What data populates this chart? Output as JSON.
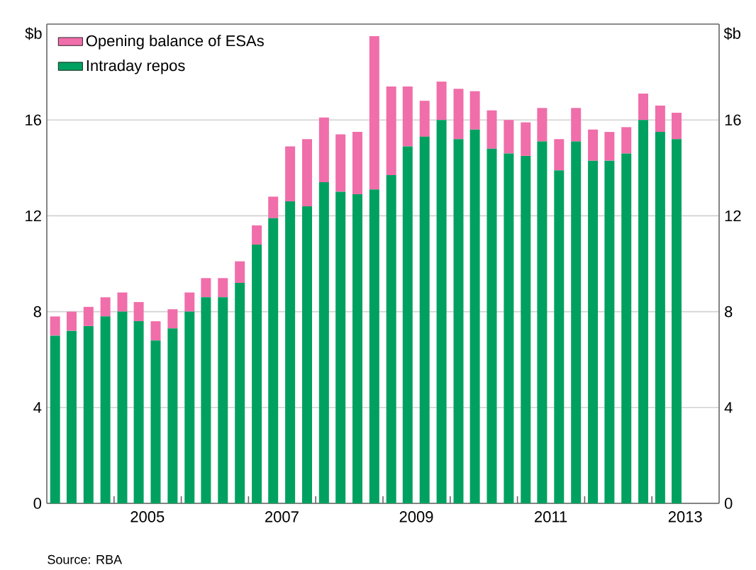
{
  "chart_data": {
    "type": "bar",
    "stacked": true,
    "ylabel": "$b",
    "y2label": "$b",
    "x": [
      "2004-02-15",
      "2004-05-15",
      "2004-08-15",
      "2004-11-15",
      "2005-02-15",
      "2005-05-15",
      "2005-08-15",
      "2005-11-15",
      "2006-02-15",
      "2006-05-15",
      "2006-08-15",
      "2006-11-15",
      "2007-02-15",
      "2007-05-15",
      "2007-08-15",
      "2007-11-15",
      "2008-02-15",
      "2008-05-15",
      "2008-08-15",
      "2008-11-15",
      "2009-02-15",
      "2009-05-15",
      "2009-08-15",
      "2009-11-15",
      "2010-02-15",
      "2010-05-15",
      "2010-08-15",
      "2010-11-15",
      "2011-02-15",
      "2011-05-15",
      "2011-08-15",
      "2011-11-15",
      "2012-02-15",
      "2012-05-15",
      "2012-08-15",
      "2012-11-15",
      "2013-02-15",
      "2013-05-15"
    ],
    "series": [
      {
        "name": "Intraday repos",
        "color": "#00a160",
        "values": [
          7.0,
          7.2,
          7.4,
          7.8,
          8.0,
          7.6,
          6.8,
          7.3,
          8.0,
          8.6,
          8.6,
          9.2,
          10.8,
          11.9,
          12.6,
          12.4,
          13.4,
          13.0,
          12.9,
          13.1,
          13.7,
          14.9,
          15.3,
          16.0,
          15.2,
          15.6,
          14.8,
          14.6,
          14.5,
          15.1,
          13.9,
          15.1,
          14.3,
          14.3,
          14.6,
          16.0,
          15.5,
          15.2
        ]
      },
      {
        "name": "Opening balance of ESAs",
        "color": "#f06eaa",
        "values": [
          0.8,
          0.8,
          0.8,
          0.8,
          0.8,
          0.8,
          0.8,
          0.8,
          0.8,
          0.8,
          0.8,
          0.9,
          0.8,
          0.9,
          2.3,
          2.8,
          2.7,
          2.4,
          2.6,
          6.4,
          3.7,
          2.5,
          1.5,
          1.6,
          2.1,
          1.6,
          1.6,
          1.4,
          1.4,
          1.4,
          1.3,
          1.4,
          1.3,
          1.2,
          1.1,
          1.1,
          1.1,
          1.1
        ]
      }
    ],
    "xlim": [
      "2004-01-01",
      "2014-01-01"
    ],
    "xticks": [
      {
        "value": "2005-01-01",
        "label": null
      },
      {
        "value": "2006-01-01",
        "label": null
      },
      {
        "value": "2007-01-01",
        "label": null
      },
      {
        "value": "2008-01-01",
        "label": null
      },
      {
        "value": "2009-01-01",
        "label": null
      },
      {
        "value": "2010-01-01",
        "label": null
      },
      {
        "value": "2011-01-01",
        "label": null
      },
      {
        "value": "2012-01-01",
        "label": null
      },
      {
        "value": "2013-01-01",
        "label": null
      },
      {
        "value": "2005-07-01",
        "label": "2005"
      },
      {
        "value": "2007-07-01",
        "label": "2007"
      },
      {
        "value": "2009-07-01",
        "label": "2009"
      },
      {
        "value": "2011-07-01",
        "label": "2011"
      },
      {
        "value": "2013-07-01",
        "label": "2013"
      }
    ],
    "ylim": [
      0,
      20
    ],
    "yticks": [
      0,
      4,
      8,
      12,
      16
    ],
    "y2lim": [
      0,
      20
    ],
    "y2ticks": [
      0,
      4,
      8,
      12,
      16
    ],
    "grid": "y",
    "legend": "top left",
    "annotations": [
      "Source: RBA"
    ]
  }
}
